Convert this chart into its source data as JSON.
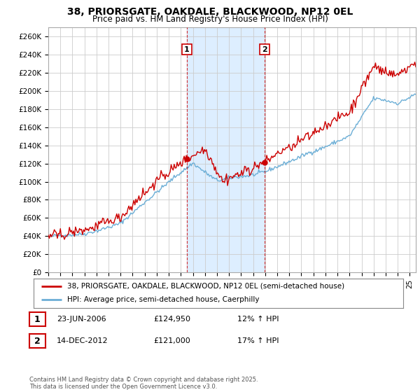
{
  "title_line1": "38, PRIORSGATE, OAKDALE, BLACKWOOD, NP12 0EL",
  "title_line2": "Price paid vs. HM Land Registry's House Price Index (HPI)",
  "ylim": [
    0,
    270000
  ],
  "yticks": [
    0,
    20000,
    40000,
    60000,
    80000,
    100000,
    120000,
    140000,
    160000,
    180000,
    200000,
    220000,
    240000,
    260000
  ],
  "ytick_labels": [
    "£0",
    "£20K",
    "£40K",
    "£60K",
    "£80K",
    "£100K",
    "£120K",
    "£140K",
    "£160K",
    "£180K",
    "£200K",
    "£220K",
    "£240K",
    "£260K"
  ],
  "hpi_color": "#6baed6",
  "price_color": "#cc0000",
  "shade_color": "#ddeeff",
  "marker1_date": 2006.5,
  "marker1_price": 124950,
  "marker2_date": 2012.95,
  "marker2_price": 121000,
  "legend_label1": "38, PRIORSGATE, OAKDALE, BLACKWOOD, NP12 0EL (semi-detached house)",
  "legend_label2": "HPI: Average price, semi-detached house, Caerphilly",
  "table_row1": [
    "1",
    "23-JUN-2006",
    "£124,950",
    "12% ↑ HPI"
  ],
  "table_row2": [
    "2",
    "14-DEC-2012",
    "£121,000",
    "17% ↑ HPI"
  ],
  "footer": "Contains HM Land Registry data © Crown copyright and database right 2025.\nThis data is licensed under the Open Government Licence v3.0.",
  "background_color": "#ffffff",
  "grid_color": "#cccccc"
}
